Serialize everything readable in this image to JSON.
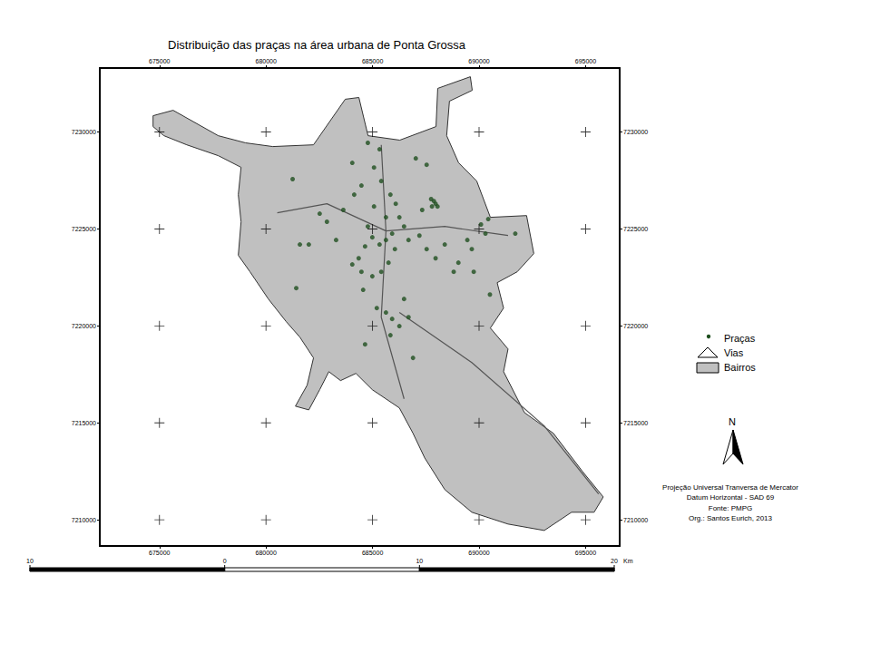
{
  "chart_data": {
    "type": "map",
    "title": "Distribuição das praças na área urbana de Ponta Grossa",
    "xlim": [
      672200,
      696600
    ],
    "ylim": [
      7208650,
      7233300
    ],
    "xticks": [
      675000,
      680000,
      685000,
      690000,
      695000
    ],
    "yticks": [
      7210000,
      7215000,
      7220000,
      7225000,
      7230000
    ],
    "grid": true,
    "legend": "right",
    "series": [
      {
        "name": "Bairros",
        "type": "polygon",
        "color": "#c0c0c0",
        "x": [
          674700,
          675640,
          677760,
          679040,
          680320,
          682230,
          683720,
          684360,
          684790,
          686280,
          687980,
          688060,
          689590,
          689680,
          688610,
          688480,
          689040,
          689890,
          690530,
          692230,
          692570,
          691790,
          690850,
          691150,
          690530,
          691360,
          691150,
          692130,
          693490,
          694850,
          695830,
          695400,
          694340,
          693060,
          691360,
          689660,
          688390,
          687450,
          686900,
          686260,
          684990,
          684220,
          683500,
          682950,
          682520,
          682010,
          681380,
          681930,
          682230,
          681590,
          680950,
          680110,
          679250,
          678700,
          678830,
          678700,
          678830,
          677760,
          676280,
          675210,
          674700
        ],
        "values": [
          7230840,
          7231120,
          7229810,
          7229440,
          7229250,
          7229340,
          7231690,
          7231780,
          7229810,
          7229580,
          7230280,
          7232250,
          7232850,
          7232150,
          7231590,
          7229810,
          7228410,
          7227470,
          7225600,
          7225690,
          7223730,
          7222790,
          7222230,
          7220920,
          7219890,
          7218810,
          7217640,
          7215530,
          7214460,
          7212500,
          7211180,
          7210390,
          7210390,
          7209450,
          7209780,
          7210390,
          7211560,
          7213190,
          7214460,
          7215770,
          7216710,
          7217550,
          7217180,
          7217640,
          7216710,
          7215670,
          7215860,
          7216940,
          7218350,
          7219420,
          7220220,
          7221390,
          7222790,
          7223640,
          7225370,
          7226770,
          7228180,
          7228780,
          7229340,
          7229810,
          7230280
        ]
      },
      {
        "name": "Vias",
        "type": "line",
        "color": "#555555",
        "line_style": "solid",
        "x": [
          686260,
          689660,
          693060,
          695610,
          null,
          680530,
          682860,
          685630,
          688390,
          691360,
          null,
          685410,
          685630,
          685410,
          686480
        ],
        "values": [
          7220690,
          7218110,
          7214840,
          7211330,
          null,
          7225830,
          7226300,
          7224900,
          7225130,
          7224660,
          null,
          7229340,
          7224900,
          7220450,
          7216240
        ]
      },
      {
        "name": "Praças",
        "type": "scatter",
        "color": "#1f4f1f",
        "marker": "circle",
        "x": [
          681250,
          682520,
          682860,
          683630,
          684140,
          684480,
          684780,
          685070,
          685410,
          685840,
          686090,
          686260,
          686480,
          685920,
          685630,
          685330,
          684990,
          684650,
          684350,
          684050,
          684480,
          684990,
          685410,
          685750,
          686050,
          686690,
          687200,
          687540,
          687960,
          687330,
          687750,
          687880,
          687960,
          688050,
          687790,
          687540,
          687030,
          685330,
          684050,
          683290,
          682010,
          681590,
          681420,
          684560,
          685200,
          685630,
          685920,
          686260,
          686690,
          685840,
          684650,
          686900,
          689030,
          689450,
          689750,
          690090,
          690430,
          689660,
          690300,
          691700,
          690510,
          688390,
          688810,
          686480,
          685070,
          685630,
          684780
        ],
        "values": [
          7227570,
          7225790,
          7225370,
          7225980,
          7226770,
          7227240,
          7229440,
          7228170,
          7227470,
          7226770,
          7226300,
          7225600,
          7225130,
          7224760,
          7224430,
          7224200,
          7224570,
          7224100,
          7223490,
          7223170,
          7222790,
          7222560,
          7222790,
          7223260,
          7223960,
          7224430,
          7224660,
          7223960,
          7223490,
          7225980,
          7226540,
          7226440,
          7226300,
          7226160,
          7226160,
          7228310,
          7228640,
          7229110,
          7228410,
          7224430,
          7224200,
          7224200,
          7221950,
          7221860,
          7220920,
          7220690,
          7220360,
          7219990,
          7220450,
          7219520,
          7219050,
          7218350,
          7223260,
          7224430,
          7222790,
          7225230,
          7225510,
          7223960,
          7224760,
          7224760,
          7221620,
          7224200,
          7222790,
          7221390,
          7226160,
          7225600,
          7225130
        ]
      }
    ],
    "north": "N",
    "notes": [
      "Projeção Universal Tranversa de Mercator",
      "Datum Horizontal - SAD 69",
      "Fonte: PMPG",
      "Org.: Santos Eurich, 2013"
    ],
    "scale_bar": {
      "ticks": [
        {
          "value": -10,
          "label": "10"
        },
        0,
        10,
        20
      ],
      "unit": "Km"
    }
  }
}
